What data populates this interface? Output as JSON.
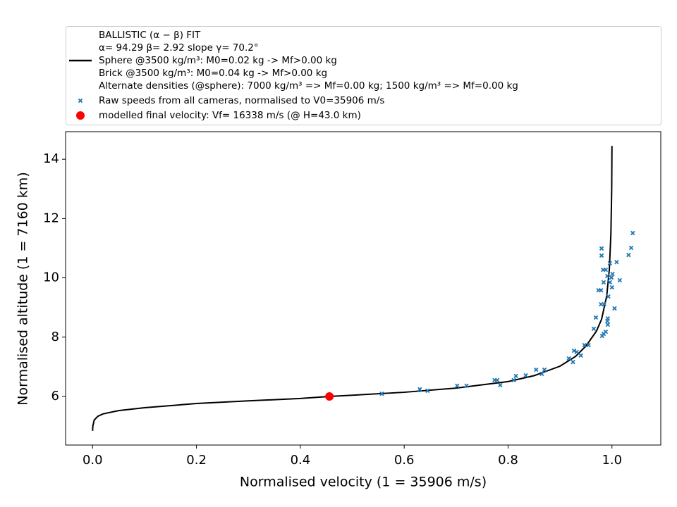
{
  "chart_data": {
    "type": "line",
    "xlabel": "Normalised velocity (1 = 35906 m/s)",
    "ylabel": "Normalised altitude (1 = 7160 km)",
    "xlim": [
      -0.052,
      1.094
    ],
    "ylim": [
      4.36,
      14.93
    ],
    "xticks": [
      {
        "value": 0,
        "label": "0.0"
      },
      0.2,
      0.4,
      0.6,
      0.8,
      {
        "value": 1,
        "label": "1.0"
      }
    ],
    "yticks": [
      6,
      8,
      10,
      12,
      14
    ],
    "grid": false,
    "legend": "top",
    "series": [
      {
        "type": "line",
        "color": "#000000",
        "name": [
          "BALLISTIC (α − β) FIT",
          "α= 94.29     β= 2.92     slope γ= 70.2°",
          " Sphere @3500 kg/m³: M0=0.02 kg -> Mf>0.00 kg",
          " Brick @3500 kg/m³: M0=0.04 kg -> Mf>0.00 kg",
          "Alternate densities (@sphere): 7000 kg/m³ => Mf=0.00 kg; 1500 kg/m³ => Mf=0.00 kg"
        ],
        "x": [
          0,
          0.0005,
          0.003,
          0.01,
          0.02,
          0.05,
          0.1,
          0.2,
          0.3,
          0.4,
          0.456,
          0.5,
          0.6,
          0.7,
          0.8,
          0.85,
          0.9,
          0.93,
          0.95,
          0.97,
          0.98,
          0.99,
          0.995,
          0.998,
          0.9995,
          1.0
        ],
        "y": [
          4.84,
          5.0,
          5.2,
          5.33,
          5.41,
          5.52,
          5.62,
          5.76,
          5.85,
          5.93,
          6.0,
          6.04,
          6.14,
          6.28,
          6.5,
          6.7,
          7.02,
          7.35,
          7.7,
          8.2,
          8.6,
          9.4,
          10.3,
          11.5,
          13.0,
          14.45
        ]
      },
      {
        "type": "scatter",
        "color": "#1f77b4",
        "name": "Raw speeds from all cameras, normalised to V0=35906 m/s",
        "x": [
          0.557,
          0.63,
          0.645,
          0.702,
          0.72,
          0.774,
          0.779,
          0.785,
          0.811,
          0.815,
          0.834,
          0.854,
          0.865,
          0.87,
          0.917,
          0.925,
          0.927,
          0.932,
          0.94,
          0.947,
          0.955,
          0.965,
          0.969,
          0.974,
          0.979,
          0.979,
          0.98,
          0.98,
          0.983,
          0.984,
          0.985,
          0.981,
          0.984,
          0.988,
          0.988,
          0.991,
          0.991,
          0.992,
          0.992,
          0.993,
          0.996,
          0.996,
          0.999,
          1.0,
          1.001,
          1.005,
          1.009,
          1.015,
          1.032,
          1.037,
          1.04
        ],
        "y": [
          6.09,
          6.24,
          6.19,
          6.36,
          6.36,
          6.55,
          6.55,
          6.38,
          6.55,
          6.69,
          6.71,
          6.9,
          6.76,
          6.9,
          7.28,
          7.16,
          7.54,
          7.5,
          7.38,
          7.73,
          7.73,
          8.28,
          8.66,
          9.58,
          9.58,
          9.11,
          10.99,
          10.75,
          10.27,
          9.85,
          9.11,
          8.04,
          8.11,
          8.18,
          10.27,
          10.06,
          8.54,
          8.63,
          8.42,
          9.37,
          10.49,
          9.85,
          10.01,
          9.68,
          10.13,
          8.97,
          10.53,
          9.92,
          10.77,
          11.01,
          11.51
        ]
      },
      {
        "type": "point",
        "color": "#ff0000",
        "name": "modelled final velocity: Vf= 16338 m/s (@ H=43.0 km)",
        "x": [
          0.456
        ],
        "y": [
          6.0
        ]
      }
    ]
  }
}
